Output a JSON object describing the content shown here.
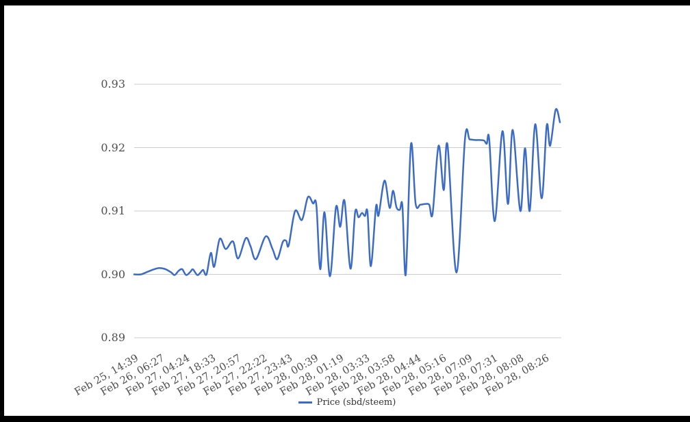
{
  "colors": {
    "frame": "#000000",
    "panel": "#ffffff"
  },
  "chart_data": {
    "type": "line",
    "title": "",
    "xlabel": "",
    "ylabel": "",
    "grid": "horizontal",
    "grid_color": "#cccccc",
    "legend_position": "bottom",
    "ylim": [
      0.89,
      0.93
    ],
    "y_tick_labels": [
      "0.93",
      "0.92",
      "0.91",
      "0.90",
      "0.89"
    ],
    "x_tick_labels": [
      "Feb 25, 14:39",
      "Feb 26, 06:27",
      "Feb 27, 04:24",
      "Feb 27, 18:33",
      "Feb 27, 20:57",
      "Feb 27, 22:22",
      "Feb 27, 23:43",
      "Feb 28, 00:39",
      "Feb 28, 01:19",
      "Feb 28, 03:33",
      "Feb 28, 03:58",
      "Feb 28, 04:44",
      "Feb 28, 05:16",
      "Feb 28, 07:09",
      "Feb 28, 07:31",
      "Feb 28, 08:08",
      "Feb 28, 08:26"
    ],
    "series": [
      {
        "name": "Price (sbd/steem)",
        "color": "#3b6bc5",
        "points": [
          [
            0.0,
            0.9
          ],
          [
            0.016,
            0.9
          ],
          [
            0.031,
            0.9004
          ],
          [
            0.047,
            0.9008
          ],
          [
            0.059,
            0.901
          ],
          [
            0.074,
            0.9008
          ],
          [
            0.087,
            0.9003
          ],
          [
            0.095,
            0.8999
          ],
          [
            0.105,
            0.9006
          ],
          [
            0.113,
            0.9008
          ],
          [
            0.122,
            0.8999
          ],
          [
            0.132,
            0.9004
          ],
          [
            0.138,
            0.9008
          ],
          [
            0.148,
            0.8999
          ],
          [
            0.156,
            0.9003
          ],
          [
            0.162,
            0.9007
          ],
          [
            0.17,
            0.9
          ],
          [
            0.18,
            0.9034
          ],
          [
            0.188,
            0.9012
          ],
          [
            0.201,
            0.9056
          ],
          [
            0.215,
            0.904
          ],
          [
            0.232,
            0.9052
          ],
          [
            0.244,
            0.9025
          ],
          [
            0.262,
            0.9057
          ],
          [
            0.273,
            0.9045
          ],
          [
            0.286,
            0.9024
          ],
          [
            0.309,
            0.906
          ],
          [
            0.325,
            0.904
          ],
          [
            0.336,
            0.9024
          ],
          [
            0.349,
            0.9051
          ],
          [
            0.357,
            0.9053
          ],
          [
            0.363,
            0.9046
          ],
          [
            0.378,
            0.91
          ],
          [
            0.394,
            0.9086
          ],
          [
            0.408,
            0.9122
          ],
          [
            0.42,
            0.9112
          ],
          [
            0.428,
            0.9109
          ],
          [
            0.437,
            0.9008
          ],
          [
            0.447,
            0.9098
          ],
          [
            0.46,
            0.8997
          ],
          [
            0.474,
            0.9106
          ],
          [
            0.484,
            0.9075
          ],
          [
            0.494,
            0.9116
          ],
          [
            0.508,
            0.9009
          ],
          [
            0.519,
            0.9098
          ],
          [
            0.527,
            0.909
          ],
          [
            0.535,
            0.9097
          ],
          [
            0.542,
            0.9092
          ],
          [
            0.548,
            0.9098
          ],
          [
            0.556,
            0.9013
          ],
          [
            0.568,
            0.9107
          ],
          [
            0.574,
            0.9093
          ],
          [
            0.588,
            0.9148
          ],
          [
            0.6,
            0.9105
          ],
          [
            0.608,
            0.9132
          ],
          [
            0.616,
            0.9106
          ],
          [
            0.624,
            0.9102
          ],
          [
            0.63,
            0.9108
          ],
          [
            0.638,
            0.9
          ],
          [
            0.65,
            0.9205
          ],
          [
            0.661,
            0.9112
          ],
          [
            0.672,
            0.911
          ],
          [
            0.683,
            0.9111
          ],
          [
            0.693,
            0.911
          ],
          [
            0.701,
            0.9096
          ],
          [
            0.715,
            0.9203
          ],
          [
            0.727,
            0.9133
          ],
          [
            0.736,
            0.9204
          ],
          [
            0.757,
            0.9003
          ],
          [
            0.777,
            0.9214
          ],
          [
            0.788,
            0.9213
          ],
          [
            0.801,
            0.9212
          ],
          [
            0.812,
            0.9212
          ],
          [
            0.822,
            0.9211
          ],
          [
            0.828,
            0.9206
          ],
          [
            0.834,
            0.9213
          ],
          [
            0.847,
            0.9084
          ],
          [
            0.865,
            0.9226
          ],
          [
            0.878,
            0.9111
          ],
          [
            0.889,
            0.9228
          ],
          [
            0.907,
            0.91
          ],
          [
            0.918,
            0.9199
          ],
          [
            0.929,
            0.91
          ],
          [
            0.942,
            0.9237
          ],
          [
            0.957,
            0.912
          ],
          [
            0.969,
            0.9235
          ],
          [
            0.977,
            0.9203
          ],
          [
            0.99,
            0.926
          ],
          [
            1.0,
            0.924
          ]
        ]
      }
    ]
  }
}
